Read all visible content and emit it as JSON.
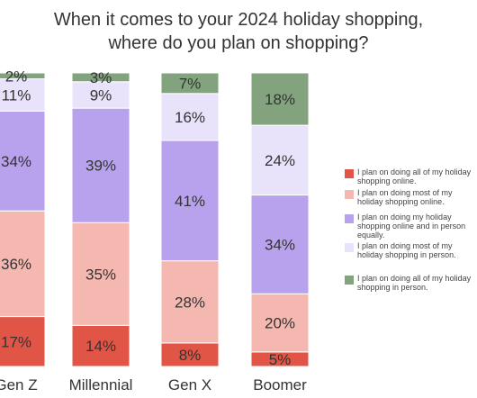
{
  "chart_data": {
    "type": "bar",
    "stacked": true,
    "percent_stacked": true,
    "title": [
      "When it comes to your 2024 holiday shopping,",
      "where do you plan on shopping?"
    ],
    "categories": [
      "Gen Z",
      "Millennial",
      "Gen X",
      "Boomer"
    ],
    "series": [
      {
        "name": "I plan on doing all of my holiday shopping online.",
        "values": [
          17,
          14,
          8,
          5
        ],
        "color": "#e05545"
      },
      {
        "name": "I plan on doing most of my holiday shopping online.",
        "values": [
          36,
          35,
          28,
          20
        ],
        "color": "#f5b8b0"
      },
      {
        "name": "I plan on doing my holiday shopping online and in person equally.",
        "values": [
          34,
          39,
          41,
          34
        ],
        "color": "#b8a2ee"
      },
      {
        "name": "I plan on doing most of my holiday shopping in person.",
        "values": [
          11,
          9,
          16,
          24
        ],
        "color": "#e9e2fb"
      },
      {
        "name": "I plan on doing all of my holiday shopping in person.",
        "values": [
          2,
          3,
          7,
          18
        ],
        "color": "#82a37e"
      }
    ],
    "value_labels": [
      [
        "17%",
        "36%",
        "34%",
        "11%",
        "2%"
      ],
      [
        "14%",
        "35%",
        "39%",
        "9%",
        "3%"
      ],
      [
        "8%",
        "28%",
        "41%",
        "16%",
        "7%"
      ],
      [
        "5%",
        "20%",
        "34%",
        "24%",
        "18%"
      ]
    ],
    "legend_lines": [
      [
        "I plan on doing all of my holiday",
        "shopping online."
      ],
      [
        "I plan on doing most of my",
        "holiday shopping online."
      ],
      [
        "I plan on doing my holiday",
        "shopping online and in person",
        "equally."
      ],
      [
        "I plan on doing most of my",
        "holiday shopping in person."
      ],
      [
        "I plan on doing all of my holiday",
        "shopping in person."
      ]
    ],
    "legend_position": "right",
    "ylim": [
      0,
      100
    ],
    "grid": false
  }
}
